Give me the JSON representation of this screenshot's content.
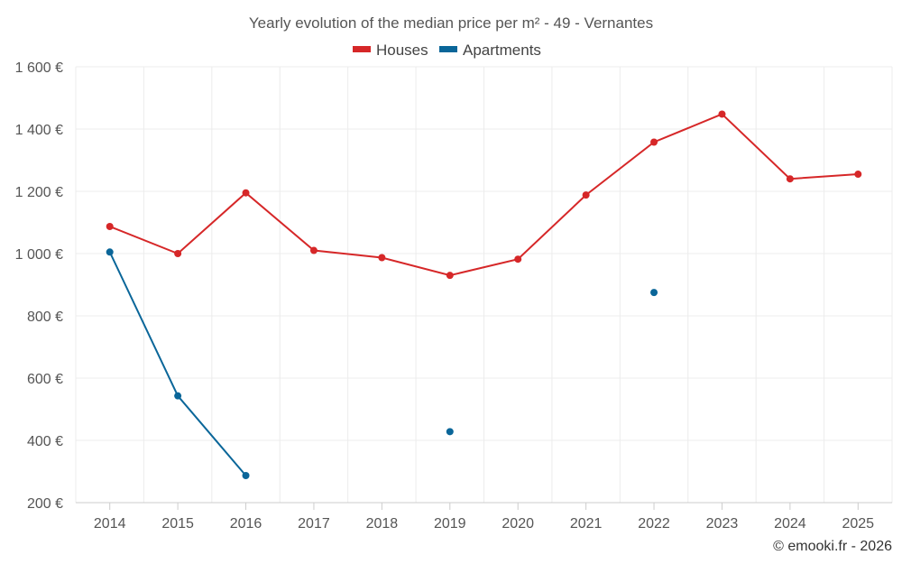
{
  "chart_data": {
    "type": "line",
    "title": "Yearly evolution of the median price per m² - 49 - Vernantes",
    "categories": [
      "2014",
      "2015",
      "2016",
      "2017",
      "2018",
      "2019",
      "2020",
      "2021",
      "2022",
      "2023",
      "2024",
      "2025"
    ],
    "series": [
      {
        "name": "Houses",
        "color": "#d62728",
        "values": [
          1087,
          1000,
          1195,
          1010,
          987,
          930,
          982,
          1188,
          1358,
          1448,
          1240,
          1255
        ]
      },
      {
        "name": "Apartments",
        "color": "#0a6699",
        "values": [
          1005,
          543,
          287,
          null,
          null,
          428,
          null,
          null,
          875,
          null,
          null,
          null
        ]
      }
    ],
    "ylim": [
      200,
      1600
    ],
    "yticks": [
      200,
      400,
      600,
      800,
      1000,
      1200,
      1400,
      1600
    ],
    "ytick_labels": [
      "200 €",
      "400 €",
      "600 €",
      "800 €",
      "1 000 €",
      "1 200 €",
      "1 400 €",
      "1 600 €"
    ],
    "xlabel": "",
    "ylabel": "",
    "grid": true,
    "legend": "top-center"
  },
  "credit": "© emooki.fr - 2026"
}
